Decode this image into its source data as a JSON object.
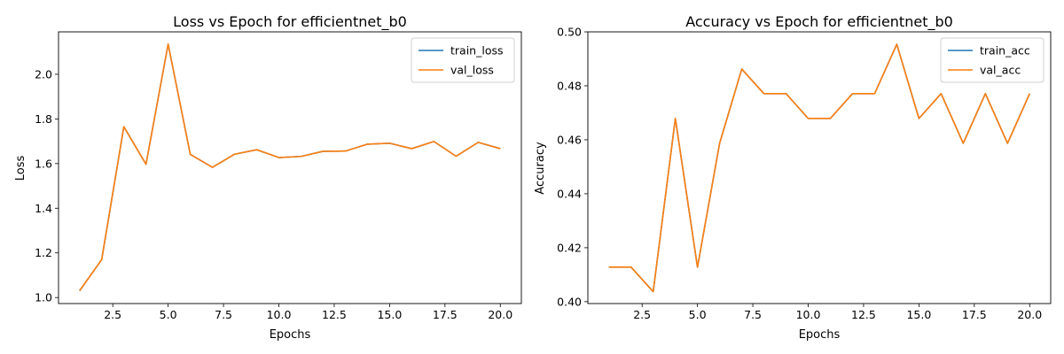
{
  "colors": {
    "train": "#1f77b4",
    "val": "#ff7f0e"
  },
  "chart_data": [
    {
      "type": "line",
      "title": "Loss vs Epoch for efficientnet_b0",
      "xlabel": "Epochs",
      "ylabel": "Loss",
      "xlim": [
        0.05,
        20.95
      ],
      "ylim": [
        0.973,
        2.19
      ],
      "xticks": [
        2.5,
        5.0,
        7.5,
        10.0,
        12.5,
        15.0,
        17.5,
        20.0
      ],
      "xtick_labels": [
        "2.5",
        "5.0",
        "7.5",
        "10.0",
        "12.5",
        "15.0",
        "17.5",
        "20.0"
      ],
      "yticks": [
        1.0,
        1.2,
        1.4,
        1.6,
        1.8,
        2.0
      ],
      "ytick_labels": [
        "1.0",
        "1.2",
        "1.4",
        "1.6",
        "1.8",
        "2.0"
      ],
      "grid": false,
      "legend": "top-right",
      "x": [
        1,
        2,
        3,
        4,
        5,
        6,
        7,
        8,
        9,
        10,
        11,
        12,
        13,
        14,
        15,
        16,
        17,
        18,
        19,
        20
      ],
      "series": [
        {
          "name": "train_loss",
          "color": "#1f77b4",
          "values": [
            1.03,
            1.17,
            1.765,
            1.597,
            2.135,
            1.641,
            1.583,
            1.642,
            1.662,
            1.627,
            1.632,
            1.655,
            1.656,
            1.687,
            1.691,
            1.667,
            1.699,
            1.633,
            1.695,
            1.667
          ]
        },
        {
          "name": "val_loss",
          "color": "#ff7f0e",
          "values": [
            1.03,
            1.17,
            1.765,
            1.597,
            2.135,
            1.641,
            1.583,
            1.642,
            1.662,
            1.627,
            1.632,
            1.655,
            1.656,
            1.687,
            1.691,
            1.667,
            1.699,
            1.633,
            1.695,
            1.667
          ]
        }
      ]
    },
    {
      "type": "line",
      "title": "Accuracy vs Epoch for efficientnet_b0",
      "xlabel": "Epochs",
      "ylabel": "Accuracy",
      "xlim": [
        0.05,
        20.95
      ],
      "ylim": [
        0.3993,
        0.5
      ],
      "xticks": [
        2.5,
        5.0,
        7.5,
        10.0,
        12.5,
        15.0,
        17.5,
        20.0
      ],
      "xtick_labels": [
        "2.5",
        "5.0",
        "7.5",
        "10.0",
        "12.5",
        "15.0",
        "17.5",
        "20.0"
      ],
      "yticks": [
        0.4,
        0.42,
        0.44,
        0.46,
        0.48,
        0.5
      ],
      "ytick_labels": [
        "0.40",
        "0.42",
        "0.44",
        "0.46",
        "0.48",
        "0.50"
      ],
      "grid": false,
      "legend": "top-right",
      "x": [
        1,
        2,
        3,
        4,
        5,
        6,
        7,
        8,
        9,
        10,
        11,
        12,
        13,
        14,
        15,
        16,
        17,
        18,
        19,
        20
      ],
      "series": [
        {
          "name": "train_acc",
          "color": "#1f77b4",
          "values": [
            0.4128,
            0.4128,
            0.4037,
            0.4679,
            0.4128,
            0.4587,
            0.4862,
            0.4771,
            0.4771,
            0.4679,
            0.4679,
            0.4771,
            0.4771,
            0.4954,
            0.4679,
            0.4771,
            0.4587,
            0.4771,
            0.4587,
            0.4771
          ]
        },
        {
          "name": "val_acc",
          "color": "#ff7f0e",
          "values": [
            0.4128,
            0.4128,
            0.4037,
            0.4679,
            0.4128,
            0.4587,
            0.4862,
            0.4771,
            0.4771,
            0.4679,
            0.4679,
            0.4771,
            0.4771,
            0.4954,
            0.4679,
            0.4771,
            0.4587,
            0.4771,
            0.4587,
            0.4771
          ]
        }
      ]
    }
  ]
}
